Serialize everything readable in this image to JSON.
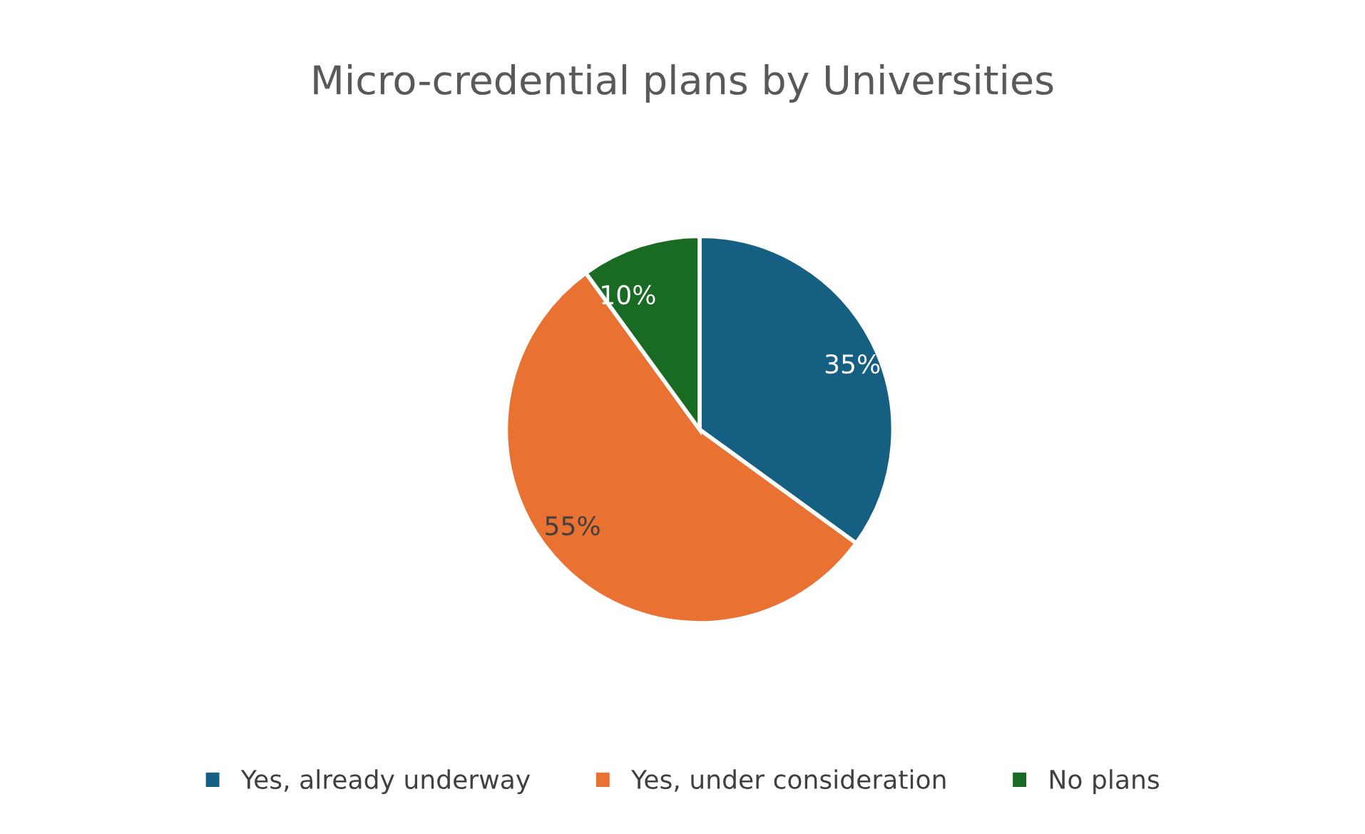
{
  "chart_data": {
    "type": "pie",
    "title": "Micro-credential plans by Universities",
    "categories": [
      "Yes, already underway",
      "Yes, under consideration",
      "No plans"
    ],
    "values": [
      35,
      55,
      10
    ],
    "value_labels": [
      "35%",
      "55%",
      "10%"
    ],
    "colors": [
      "#156082",
      "#e97132",
      "#196b24"
    ],
    "legend": "bottom"
  }
}
